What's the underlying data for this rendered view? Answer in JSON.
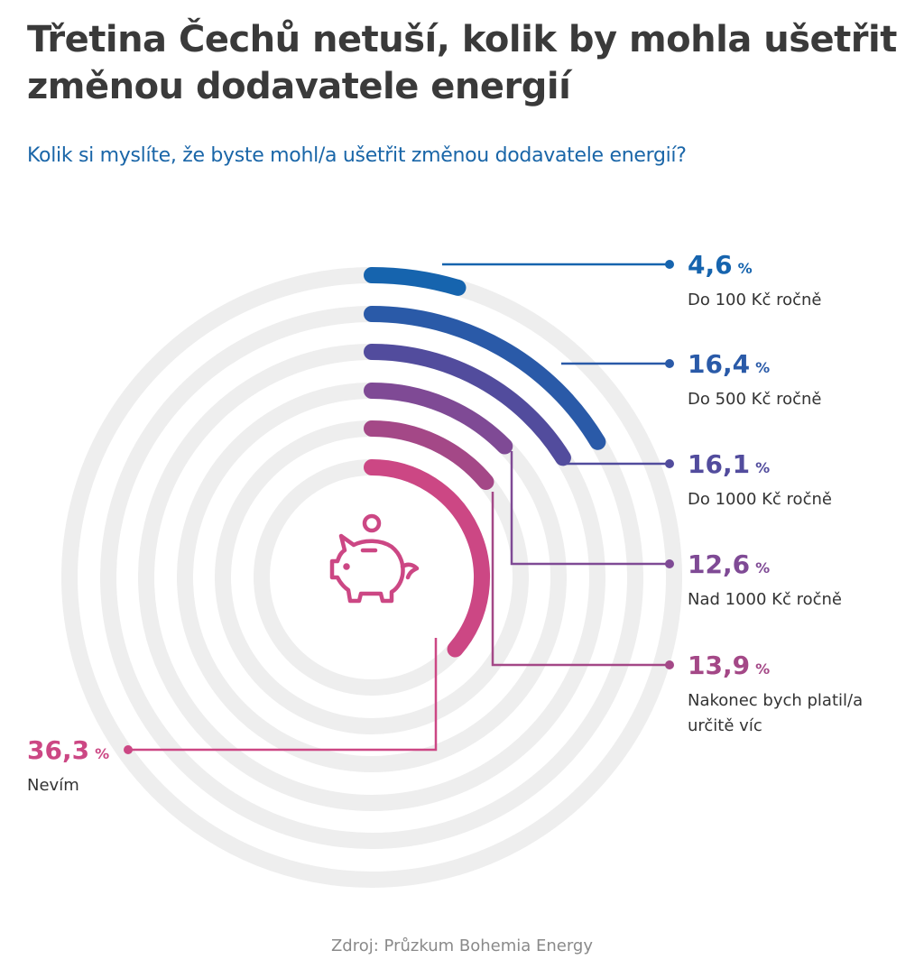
{
  "title": "Třetina Čechů netuší, kolik by mohla ušetřit změnou dodavatele energií",
  "subtitle": "Kolik si myslíte, že byste mohl/a ušetřit změnou dodavatele energií?",
  "source": "Zdroj: Průzkum Bohemia Energy",
  "icon": "piggy-bank-icon",
  "colors": {
    "track": "#eeeeee",
    "series": [
      "#1664ae",
      "#2a5aa8",
      "#524c9d",
      "#7f4a95",
      "#a44887",
      "#cc4784"
    ]
  },
  "chart_data": {
    "type": "radial-bar",
    "title": "Kolik si myslíte, že byste mohl/a ušetřit změnou dodavatele energií?",
    "unit": "%",
    "max": 100,
    "categories": [
      "Do 100 Kč ročně",
      "Do 500 Kč ročně",
      "Do 1000 Kč ročně",
      "Nad 1000 Kč ročně",
      "Nakonec bych platil/a určitě víc",
      "Nevím"
    ],
    "values": [
      4.6,
      16.4,
      16.1,
      12.6,
      13.9,
      36.3
    ],
    "value_labels": [
      "4,6",
      "16,4",
      "16,1",
      "12,6",
      "13,9",
      "36,3"
    ],
    "label_lines": [
      [
        "Do 100 Kč ročně"
      ],
      [
        "Do 500 Kč ročně"
      ],
      [
        "Do 1000 Kč ročně"
      ],
      [
        "Nad 1000 Kč ročně"
      ],
      [
        "Nakonec bych platil/a",
        "určitě víc"
      ],
      [
        "Nevím"
      ]
    ],
    "percent_sign": "%"
  }
}
